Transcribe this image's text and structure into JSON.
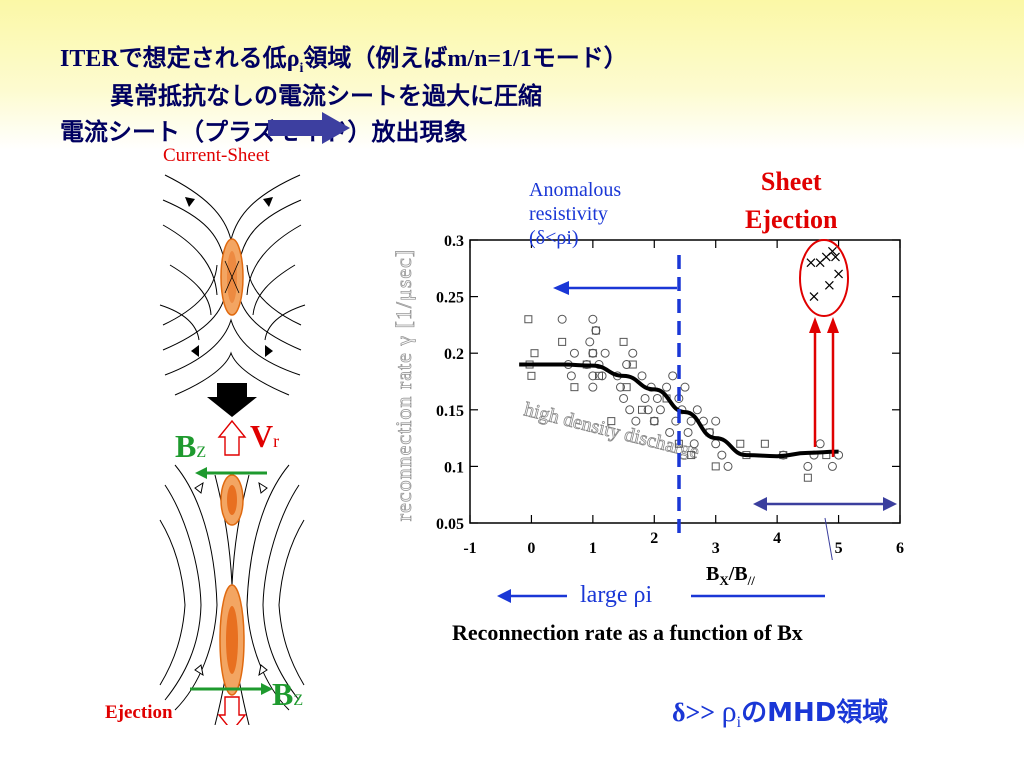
{
  "header": {
    "line1_prefix": "ITER",
    "line1_mid": "で想定される低",
    "rho": "ρ",
    "rho_sub": "i",
    "line1_suffix_jp": "領域（例えば",
    "line1_mode": "m/n=1/1",
    "line1_end": "モード）",
    "line2": "異常抵抗なしの電流シートを過大に圧縮",
    "line3": "電流シート（プラズモイド）放出現象"
  },
  "left_diagram": {
    "current_sheet_label": "Current-Sheet",
    "vr_label": "V",
    "vr_sub": "r",
    "bz_label": "B",
    "bz_sub": "Z",
    "bz2_label": "B",
    "bz2_sub": "Z",
    "ejection_label": "Ejection"
  },
  "annotations": {
    "anomalous_line1": "Anomalous",
    "anomalous_line2": "resistivity",
    "anomalous_line3": "(δ<ρi)",
    "sheet_line1": "Sheet",
    "sheet_line2": "Ejection",
    "large_rho": "large ρi",
    "caption": "Reconnection rate as a function of Bx",
    "mhd_delta": "δ>> ",
    "mhd_rho": "ρ",
    "mhd_sub": "i",
    "mhd_tail": "のMHD領域",
    "high_density": "high density discharge"
  },
  "chart_data": {
    "type": "scatter",
    "xlabel": "BX/B//",
    "ylabel": "reconnection rate γ [1/μsec]",
    "xlim": [
      -1,
      6
    ],
    "ylim": [
      0.05,
      0.3
    ],
    "x_ticks": [
      "-1",
      "0",
      "1",
      "2",
      "3",
      "4",
      "5",
      "6"
    ],
    "y_ticks": [
      "0.05",
      "0.1",
      "0.15",
      "0.2",
      "0.25",
      "0.3"
    ],
    "series": [
      {
        "marker": "square",
        "points": [
          [
            -0.05,
            0.23
          ],
          [
            -0.03,
            0.19
          ],
          [
            0.0,
            0.18
          ],
          [
            0.05,
            0.2
          ],
          [
            0.5,
            0.21
          ],
          [
            0.7,
            0.17
          ],
          [
            0.9,
            0.19
          ],
          [
            1.0,
            0.2
          ],
          [
            1.05,
            0.22
          ],
          [
            1.1,
            0.18
          ],
          [
            1.3,
            0.14
          ],
          [
            1.5,
            0.21
          ],
          [
            1.55,
            0.17
          ],
          [
            1.65,
            0.19
          ],
          [
            1.8,
            0.15
          ],
          [
            2.0,
            0.14
          ],
          [
            2.2,
            0.16
          ],
          [
            2.4,
            0.12
          ],
          [
            2.6,
            0.11
          ],
          [
            2.9,
            0.13
          ],
          [
            3.0,
            0.1
          ],
          [
            3.4,
            0.12
          ],
          [
            3.5,
            0.11
          ],
          [
            3.8,
            0.12
          ],
          [
            4.1,
            0.11
          ],
          [
            4.5,
            0.09
          ],
          [
            4.8,
            0.11
          ]
        ]
      },
      {
        "marker": "circle",
        "points": [
          [
            0.5,
            0.23
          ],
          [
            0.6,
            0.19
          ],
          [
            0.65,
            0.18
          ],
          [
            0.7,
            0.2
          ],
          [
            0.9,
            0.19
          ],
          [
            0.95,
            0.21
          ],
          [
            1.0,
            0.23
          ],
          [
            1.0,
            0.2
          ],
          [
            1.0,
            0.18
          ],
          [
            1.0,
            0.17
          ],
          [
            1.05,
            0.22
          ],
          [
            1.1,
            0.19
          ],
          [
            1.15,
            0.18
          ],
          [
            1.2,
            0.2
          ],
          [
            1.4,
            0.18
          ],
          [
            1.45,
            0.17
          ],
          [
            1.5,
            0.16
          ],
          [
            1.55,
            0.19
          ],
          [
            1.6,
            0.15
          ],
          [
            1.65,
            0.2
          ],
          [
            1.7,
            0.14
          ],
          [
            1.8,
            0.18
          ],
          [
            1.85,
            0.16
          ],
          [
            1.9,
            0.15
          ],
          [
            1.95,
            0.17
          ],
          [
            2.0,
            0.14
          ],
          [
            2.05,
            0.16
          ],
          [
            2.1,
            0.15
          ],
          [
            2.2,
            0.17
          ],
          [
            2.25,
            0.13
          ],
          [
            2.3,
            0.18
          ],
          [
            2.35,
            0.14
          ],
          [
            2.4,
            0.16
          ],
          [
            2.45,
            0.15
          ],
          [
            2.5,
            0.17
          ],
          [
            2.55,
            0.13
          ],
          [
            2.6,
            0.14
          ],
          [
            2.65,
            0.12
          ],
          [
            2.7,
            0.15
          ],
          [
            2.8,
            0.14
          ],
          [
            2.9,
            0.13
          ],
          [
            3.0,
            0.12
          ],
          [
            3.0,
            0.14
          ],
          [
            3.1,
            0.11
          ],
          [
            3.2,
            0.1
          ],
          [
            4.1,
            0.11
          ],
          [
            4.5,
            0.1
          ],
          [
            4.6,
            0.11
          ],
          [
            4.7,
            0.12
          ],
          [
            4.9,
            0.1
          ],
          [
            5.0,
            0.11
          ]
        ]
      },
      {
        "marker": "x",
        "points": [
          [
            4.55,
            0.28
          ],
          [
            4.7,
            0.28
          ],
          [
            4.8,
            0.285
          ],
          [
            4.9,
            0.29
          ],
          [
            4.95,
            0.285
          ],
          [
            5.0,
            0.27
          ],
          [
            4.85,
            0.26
          ],
          [
            4.6,
            0.25
          ]
        ]
      }
    ],
    "fit_curve": [
      [
        -0.2,
        0.19
      ],
      [
        0.5,
        0.19
      ],
      [
        1.0,
        0.189
      ],
      [
        1.5,
        0.18
      ],
      [
        2.0,
        0.168
      ],
      [
        2.5,
        0.148
      ],
      [
        3.0,
        0.125
      ],
      [
        3.5,
        0.11
      ],
      [
        4.0,
        0.109
      ],
      [
        4.5,
        0.112
      ],
      [
        5.0,
        0.113
      ]
    ]
  },
  "colors": {
    "title": "#000060",
    "red": "#e00000",
    "blue": "#1a37d6",
    "green": "#1e9a2e",
    "navy_arrow": "#3b3f9e",
    "orange": "#e87020"
  }
}
